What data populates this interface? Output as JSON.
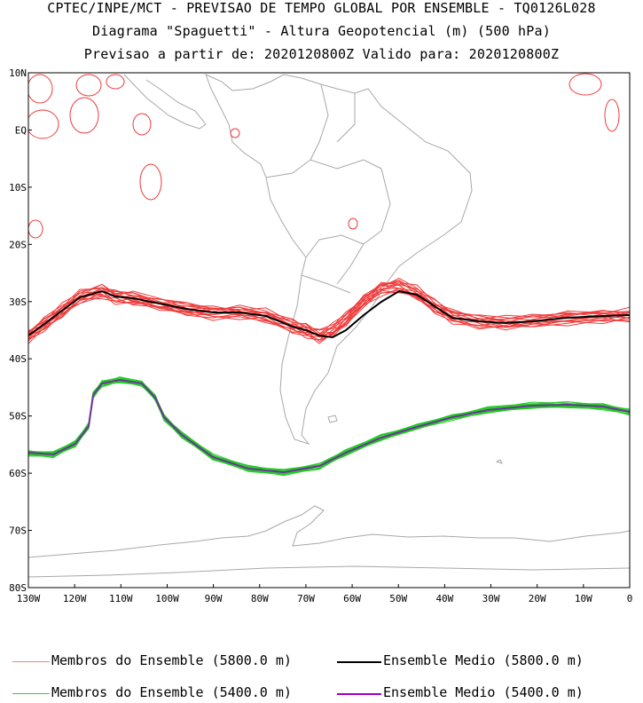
{
  "titles": [
    "CPTEC/INPE/MCT - PREVISAO DE TEMPO GLOBAL POR ENSEMBLE - TQ0126L028",
    "Diagrama \"Spaguetti\" - Altura Geopotencial (m) (500 hPa)",
    "Previsao a partir de: 2020120800Z  Valido para: 2020120800Z"
  ],
  "lat_labels": [
    "10N",
    "EQ",
    "10S",
    "20S",
    "30S",
    "40S",
    "50S",
    "60S",
    "70S",
    "80S"
  ],
  "lon_labels": [
    "130W",
    "120W",
    "110W",
    "100W",
    "90W",
    "80W",
    "70W",
    "60W",
    "50W",
    "40W",
    "30W",
    "20W",
    "10W",
    "0"
  ],
  "legend": [
    {
      "label": "Membros do Ensemble (5800.0 m)",
      "color": "#f08080"
    },
    {
      "label": "Ensemble Medio (5800.0 m)",
      "color": "#000000"
    },
    {
      "label": "Membros do Ensemble (5400.0 m)",
      "color": "#33cc33"
    },
    {
      "label": "Ensemble Medio (5400.0 m)",
      "color": "#a000c0"
    }
  ],
  "colors": {
    "member_5800": "#ee3b3b",
    "mean_5800": "#000000",
    "member_5400": "#22cc22",
    "mean_5400": "#7030a0",
    "land": "#a8a8a8"
  }
}
